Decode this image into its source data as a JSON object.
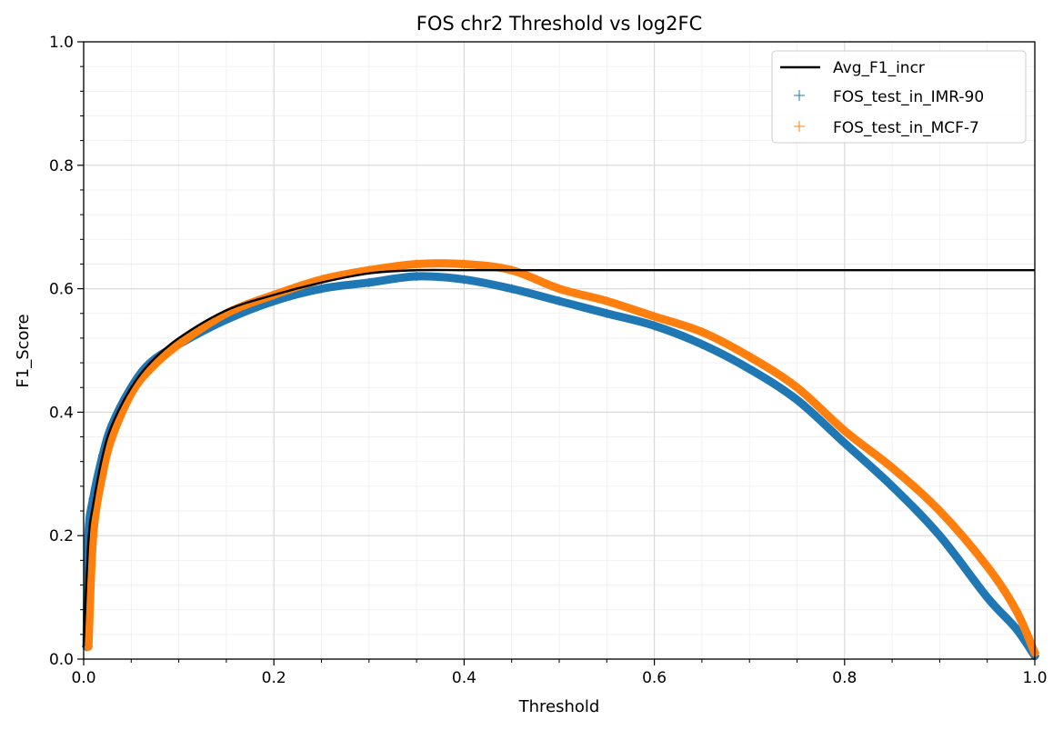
{
  "chart_data": {
    "type": "line",
    "title": "FOS chr2 Threshold vs log2FC",
    "xlabel": "Threshold",
    "ylabel": "F1_Score",
    "xlim": [
      0.0,
      1.0
    ],
    "ylim": [
      0.0,
      1.0
    ],
    "x_ticks": [
      "0.0",
      "0.2",
      "0.4",
      "0.6",
      "0.8",
      "1.0"
    ],
    "y_ticks": [
      "0.0",
      "0.2",
      "0.4",
      "0.6",
      "0.8",
      "1.0"
    ],
    "grid": true,
    "minor_grid": true,
    "legend_position": "top-right",
    "series": [
      {
        "name": "Avg_F1_incr",
        "style": "line",
        "color": "#000000",
        "x": [
          0.0,
          0.005,
          0.01,
          0.02,
          0.03,
          0.05,
          0.07,
          0.1,
          0.15,
          0.2,
          0.25,
          0.3,
          0.35,
          0.4,
          0.45,
          0.5,
          0.6,
          0.7,
          0.8,
          0.9,
          1.0
        ],
        "y": [
          0.02,
          0.19,
          0.25,
          0.33,
          0.38,
          0.44,
          0.48,
          0.52,
          0.565,
          0.59,
          0.61,
          0.625,
          0.63,
          0.63,
          0.63,
          0.63,
          0.63,
          0.63,
          0.63,
          0.63,
          0.63
        ]
      },
      {
        "name": "FOS_test_in_IMR-90",
        "style": "markers",
        "color": "#1f77b4",
        "x": [
          0.003,
          0.005,
          0.01,
          0.02,
          0.03,
          0.05,
          0.07,
          0.1,
          0.15,
          0.2,
          0.25,
          0.3,
          0.35,
          0.4,
          0.45,
          0.5,
          0.55,
          0.6,
          0.65,
          0.7,
          0.75,
          0.8,
          0.85,
          0.9,
          0.95,
          0.98,
          1.0
        ],
        "y": [
          0.02,
          0.2,
          0.26,
          0.33,
          0.38,
          0.44,
          0.48,
          0.51,
          0.55,
          0.58,
          0.6,
          0.61,
          0.62,
          0.615,
          0.6,
          0.58,
          0.56,
          0.54,
          0.51,
          0.47,
          0.42,
          0.35,
          0.28,
          0.2,
          0.1,
          0.05,
          0.005
        ]
      },
      {
        "name": "FOS_test_in_MCF-7",
        "style": "markers",
        "color": "#ff7f0e",
        "x": [
          0.005,
          0.01,
          0.02,
          0.03,
          0.05,
          0.07,
          0.1,
          0.15,
          0.2,
          0.25,
          0.3,
          0.35,
          0.4,
          0.45,
          0.5,
          0.55,
          0.6,
          0.65,
          0.7,
          0.75,
          0.8,
          0.85,
          0.9,
          0.95,
          0.98,
          1.0
        ],
        "y": [
          0.02,
          0.2,
          0.3,
          0.36,
          0.43,
          0.47,
          0.51,
          0.56,
          0.59,
          0.615,
          0.63,
          0.64,
          0.64,
          0.63,
          0.6,
          0.58,
          0.555,
          0.53,
          0.49,
          0.44,
          0.37,
          0.31,
          0.24,
          0.15,
          0.08,
          0.01
        ]
      }
    ]
  }
}
